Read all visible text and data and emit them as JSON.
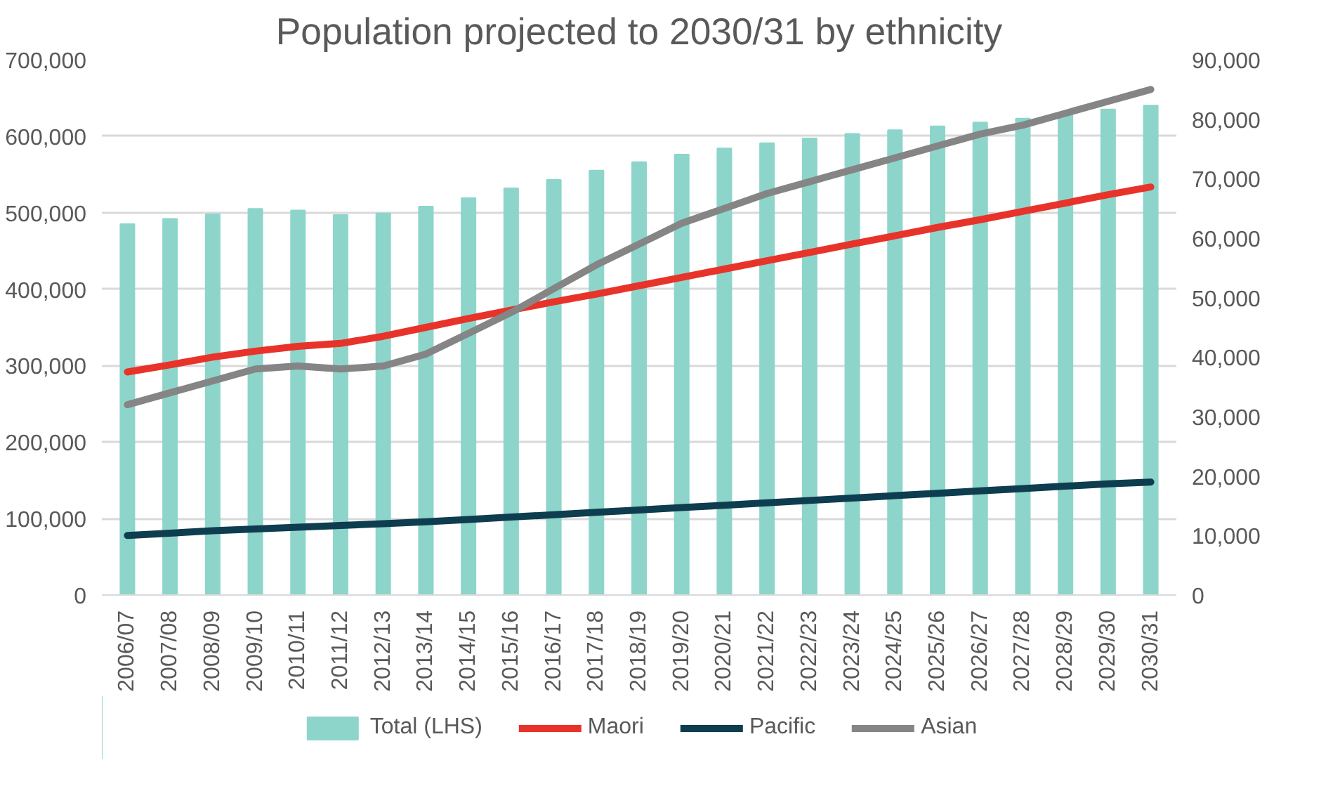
{
  "chart_data": {
    "type": "bar",
    "title": "Population projected to 2030/31 by ethnicity",
    "categories": [
      "2006/07",
      "2007/08",
      "2008/09",
      "2009/10",
      "2010/11",
      "2011/12",
      "2012/13",
      "2013/14",
      "2014/15",
      "2015/16",
      "2016/17",
      "2017/18",
      "2018/19",
      "2019/20",
      "2020/21",
      "2021/22",
      "2022/23",
      "2023/24",
      "2024/25",
      "2025/26",
      "2026/27",
      "2027/28",
      "2028/29",
      "2029/30",
      "2030/31"
    ],
    "series": [
      {
        "name": "Total (LHS)",
        "color": "#8dd5cb",
        "values": [
          485000,
          492000,
          498000,
          505000,
          503000,
          497000,
          499000,
          508000,
          519000,
          532000,
          543000,
          555000,
          566000,
          576000,
          584000,
          591000,
          597000,
          603000,
          608000,
          613000,
          618000,
          623000,
          628000,
          635000,
          640000
        ]
      },
      {
        "name": "Maori",
        "type": "line",
        "axis": "y2",
        "color": "#e8332a",
        "values": [
          37500,
          38700,
          40000,
          41000,
          41800,
          42300,
          43500,
          45000,
          46500,
          47900,
          49300,
          50600,
          52000,
          53400,
          54800,
          56200,
          57600,
          59000,
          60400,
          61800,
          63100,
          64500,
          65900,
          67300,
          68600
        ]
      },
      {
        "name": "Pacific",
        "type": "line",
        "axis": "y2",
        "color": "#0e3d4f",
        "values": [
          10000,
          10400,
          10800,
          11100,
          11400,
          11700,
          12000,
          12300,
          12700,
          13100,
          13500,
          13900,
          14300,
          14700,
          15100,
          15500,
          15900,
          16300,
          16700,
          17100,
          17500,
          17900,
          18300,
          18700,
          19000
        ]
      },
      {
        "name": "Asian",
        "type": "line",
        "axis": "y2",
        "color": "#858585",
        "values": [
          32000,
          34000,
          36000,
          38000,
          38500,
          38000,
          38500,
          40500,
          44000,
          47500,
          51500,
          55500,
          59000,
          62500,
          65000,
          67500,
          69500,
          71500,
          73500,
          75500,
          77500,
          79000,
          81000,
          83000,
          85000
        ]
      }
    ],
    "ylim": [
      0,
      700000
    ],
    "yticks": [
      {
        "value": 0,
        "label": "0"
      },
      {
        "value": 100000,
        "label": "100,000"
      },
      {
        "value": 200000,
        "label": "200,000"
      },
      {
        "value": 300000,
        "label": "300,000"
      },
      {
        "value": 400000,
        "label": "400,000"
      },
      {
        "value": 500000,
        "label": "500,000"
      },
      {
        "value": 600000,
        "label": "600,000"
      },
      {
        "value": 700000,
        "label": "700,000"
      }
    ],
    "y2lim": [
      0,
      90000
    ],
    "y2ticks": [
      {
        "value": 0,
        "label": "0"
      },
      {
        "value": 10000,
        "label": "10,000"
      },
      {
        "value": 20000,
        "label": "20,000"
      },
      {
        "value": 30000,
        "label": "30,000"
      },
      {
        "value": 40000,
        "label": "40,000"
      },
      {
        "value": 50000,
        "label": "50,000"
      },
      {
        "value": 60000,
        "label": "60,000"
      },
      {
        "value": 70000,
        "label": "70,000"
      },
      {
        "value": 80000,
        "label": "80,000"
      },
      {
        "value": 90000,
        "label": "90,000"
      }
    ],
    "grid": "y",
    "legend": "bottom"
  }
}
